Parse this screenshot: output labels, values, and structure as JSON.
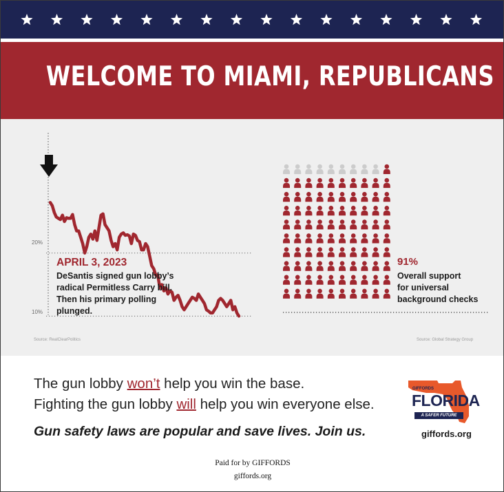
{
  "header": {
    "title": "WELCOME TO MIAMI, REPUBLICANS",
    "star_count": 16,
    "colors": {
      "navy": "#1d2452",
      "red": "#a0272f",
      "panel": "#efefef"
    }
  },
  "chart_data": [
    {
      "type": "line",
      "title": "",
      "xlabel": "",
      "ylabel": "",
      "ytick_labels": [
        "20%",
        "10%"
      ],
      "ylim": [
        9.5,
        30
      ],
      "x": [
        0,
        1,
        2,
        3,
        4,
        5,
        6,
        7,
        8,
        9,
        10,
        11,
        12,
        13,
        14,
        15,
        16,
        17,
        18,
        19,
        20,
        21,
        22,
        23,
        24,
        25,
        26,
        27,
        28,
        29,
        30,
        31,
        32,
        33,
        34,
        35,
        36,
        37,
        38,
        39,
        40,
        41,
        42,
        43,
        44,
        45,
        46,
        47,
        48,
        49,
        50,
        51,
        52,
        53,
        54,
        55,
        56,
        57,
        58,
        59,
        60,
        61,
        62,
        63,
        64,
        65,
        66,
        67,
        68,
        69,
        70,
        71,
        72,
        73,
        74,
        75,
        76,
        77,
        78,
        79,
        80,
        81,
        82,
        83,
        84,
        85,
        86,
        87,
        88,
        89,
        90,
        91,
        92,
        93
      ],
      "series": [
        {
          "name": "DeSantis primary polling",
          "color": "#a0272f",
          "values": [
            28.0,
            27.5,
            26.4,
            25.7,
            25.5,
            25.3,
            26.0,
            25.0,
            25.6,
            25.5,
            25.5,
            26.1,
            24.5,
            23.5,
            23.5,
            22.5,
            21.5,
            20.0,
            21.0,
            22.5,
            23.0,
            22.2,
            23.5,
            22.0,
            24.0,
            26.0,
            26.2,
            24.5,
            24.0,
            23.5,
            22.0,
            21.0,
            21.5,
            20.5,
            22.5,
            23.0,
            23.2,
            22.8,
            22.9,
            22.7,
            21.5,
            23.0,
            22.8,
            22.0,
            21.8,
            20.5,
            20.5,
            21.5,
            21.0,
            19.5,
            18.0,
            17.5,
            16.5,
            16.5,
            14.5,
            15.0,
            14.0,
            14.5,
            13.5,
            14.0,
            13.8,
            12.5,
            13.0,
            13.3,
            12.5,
            11.5,
            11.0,
            11.5,
            12.0,
            12.5,
            13.0,
            12.8,
            12.5,
            13.5,
            13.0,
            12.5,
            12.0,
            11.0,
            10.8,
            10.5,
            10.5,
            11.0,
            11.5,
            12.5,
            12.8,
            12.5,
            12.0,
            11.5,
            12.0,
            12.5,
            11.0,
            11.5,
            10.5,
            10.0
          ]
        }
      ],
      "annotation": {
        "date": "APRIL 3, 2023",
        "text": "DeSantis signed gun lobby’s\nradical Permitless Carry bill.\nThen his primary polling plunged."
      },
      "source": "Source: RealClearPolitics"
    },
    {
      "type": "icon-array",
      "total": 100,
      "filled": 91,
      "columns": 10,
      "rows": 10,
      "value_label": "91%",
      "label": "Overall support\nfor universal\nbackground checks",
      "colors": {
        "filled": "#a0272f",
        "empty": "#cccccc"
      },
      "source": "Source: Global Strategy Group"
    }
  ],
  "messages": {
    "line1_prefix": "The gun lobby ",
    "line1_emph": "won’t",
    "line1_suffix": " help you win the base.",
    "line2_prefix": "Fighting the gun lobby ",
    "line2_emph": "will",
    "line2_suffix": " help you win everyone else.",
    "tagline": "Gun safety laws are popular and save lives. Join us."
  },
  "logo": {
    "small": "GIFFORDS",
    "word": "FLORIDA",
    "tag": "A SAFER FUTURE",
    "url": "giffords.org",
    "colors": {
      "state": "#e8592b",
      "text": "#1d2452"
    }
  },
  "footer": {
    "paid_by": "Paid for by GIFFORDS",
    "url": "giffords.org"
  }
}
